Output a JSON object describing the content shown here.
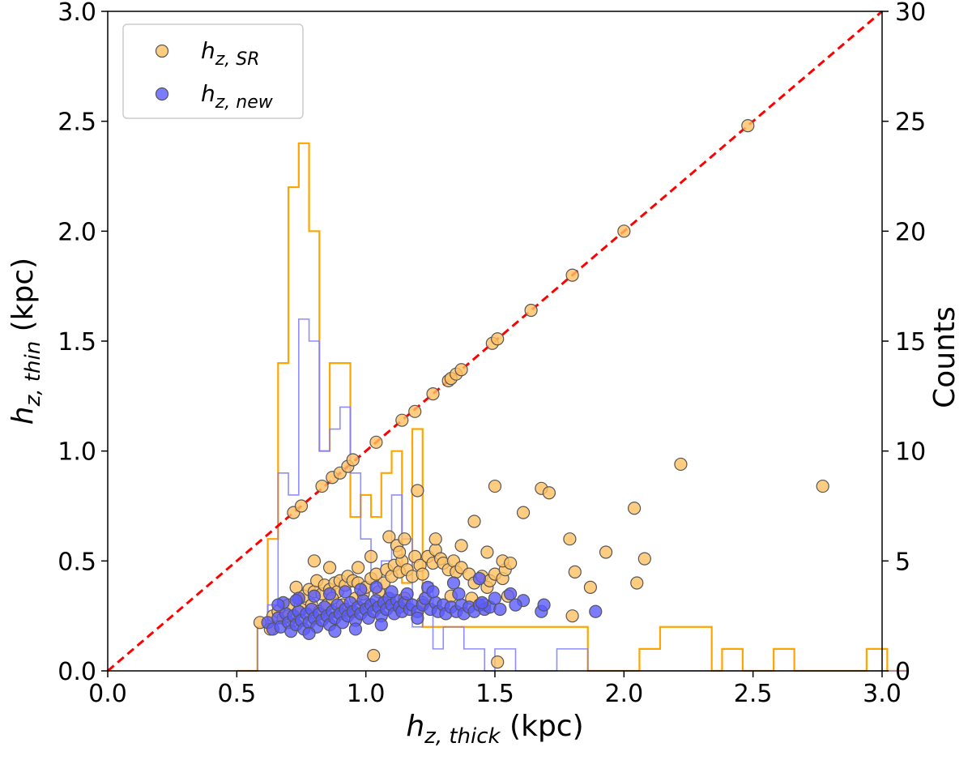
{
  "chart_data": {
    "type": "scatter",
    "title": "",
    "xlabel": {
      "base": "h",
      "sub": "z, thick",
      "unit": " (kpc)"
    },
    "ylabel": {
      "base": "h",
      "sub": "z, thin",
      "unit": " (kpc)"
    },
    "y2label": "Counts",
    "xlim": [
      0,
      3
    ],
    "ylim": [
      0,
      3
    ],
    "y2lim": [
      0,
      30
    ],
    "xticks": [
      "0.0",
      "0.5",
      "1.0",
      "1.5",
      "2.0",
      "2.5",
      "3.0"
    ],
    "yticks": [
      "0.0",
      "0.5",
      "1.0",
      "1.5",
      "2.0",
      "2.5",
      "3.0"
    ],
    "y2ticks": [
      "0",
      "5",
      "10",
      "15",
      "20",
      "25",
      "30"
    ],
    "grid": false,
    "legend_position": "top-left",
    "colors": {
      "sr_fill": "#ffc163",
      "new_fill": "#5b5bff",
      "marker_edge": "#555555",
      "sr_hist": "#ffa500",
      "new_hist": "#7a7aff",
      "diagonal": "#ff0000"
    },
    "reference_line": {
      "name": "one-to-one",
      "x": [
        0,
        3
      ],
      "y": [
        0,
        3
      ],
      "style": "dashed"
    },
    "series": [
      {
        "name": "h_z,SR",
        "legend_base": "h",
        "legend_sub": "z, SR",
        "points": [
          [
            0.59,
            0.22
          ],
          [
            0.63,
            0.19
          ],
          [
            0.64,
            0.25
          ],
          [
            0.66,
            0.27
          ],
          [
            0.68,
            0.24
          ],
          [
            0.7,
            0.3
          ],
          [
            0.72,
            0.23
          ],
          [
            0.73,
            0.38
          ],
          [
            0.74,
            0.33
          ],
          [
            0.76,
            0.34
          ],
          [
            0.78,
            0.37
          ],
          [
            0.8,
            0.36
          ],
          [
            0.81,
            0.41
          ],
          [
            0.83,
            0.35
          ],
          [
            0.84,
            0.39
          ],
          [
            0.86,
            0.37
          ],
          [
            0.88,
            0.4
          ],
          [
            0.89,
            0.36
          ],
          [
            0.9,
            0.41
          ],
          [
            0.92,
            0.39
          ],
          [
            0.93,
            0.43
          ],
          [
            0.95,
            0.41
          ],
          [
            0.7,
            0.25
          ],
          [
            0.75,
            0.28
          ],
          [
            0.79,
            0.3
          ],
          [
            0.82,
            0.27
          ],
          [
            0.85,
            0.3
          ],
          [
            0.87,
            0.33
          ],
          [
            0.91,
            0.3
          ],
          [
            0.94,
            0.27
          ],
          [
            0.96,
            0.33
          ],
          [
            0.97,
            0.4
          ],
          [
            0.99,
            0.35
          ],
          [
            1.0,
            0.38
          ],
          [
            1.02,
            0.42
          ],
          [
            1.04,
            0.44
          ],
          [
            1.05,
            0.36
          ],
          [
            1.07,
            0.4
          ],
          [
            1.08,
            0.46
          ],
          [
            1.1,
            0.43
          ],
          [
            1.11,
            0.48
          ],
          [
            1.13,
            0.45
          ],
          [
            1.14,
            0.5
          ],
          [
            1.16,
            0.46
          ],
          [
            1.18,
            0.43
          ],
          [
            1.19,
            0.52
          ],
          [
            1.21,
            0.48
          ],
          [
            1.22,
            0.44
          ],
          [
            1.24,
            0.52
          ],
          [
            1.26,
            0.49
          ],
          [
            1.27,
            0.55
          ],
          [
            1.29,
            0.51
          ],
          [
            1.3,
            0.49
          ],
          [
            1.32,
            0.46
          ],
          [
            1.34,
            0.5
          ],
          [
            1.35,
            0.45
          ],
          [
            1.37,
            0.47
          ],
          [
            1.4,
            0.44
          ],
          [
            1.42,
            0.4
          ],
          [
            1.45,
            0.43
          ],
          [
            1.47,
            0.38
          ],
          [
            1.48,
            0.41
          ],
          [
            1.5,
            0.44
          ],
          [
            1.53,
            0.42
          ],
          [
            1.54,
            0.46
          ],
          [
            0.8,
            0.5
          ],
          [
            0.86,
            0.47
          ],
          [
            0.97,
            0.47
          ],
          [
            1.02,
            0.52
          ],
          [
            1.09,
            0.61
          ],
          [
            1.12,
            0.57
          ],
          [
            1.13,
            0.54
          ],
          [
            1.15,
            0.6
          ],
          [
            1.2,
            0.82
          ],
          [
            1.27,
            0.6
          ],
          [
            1.37,
            0.57
          ],
          [
            1.42,
            0.68
          ],
          [
            1.47,
            0.54
          ],
          [
            1.5,
            0.84
          ],
          [
            1.53,
            0.5
          ],
          [
            1.56,
            0.49
          ],
          [
            1.61,
            0.72
          ],
          [
            1.68,
            0.83
          ],
          [
            1.71,
            0.81
          ],
          [
            1.79,
            0.6
          ],
          [
            1.81,
            0.45
          ],
          [
            1.87,
            0.38
          ],
          [
            1.93,
            0.54
          ],
          [
            2.04,
            0.74
          ],
          [
            2.05,
            0.4
          ],
          [
            2.08,
            0.51
          ],
          [
            2.22,
            0.94
          ],
          [
            2.77,
            0.84
          ],
          [
            1.8,
            0.25
          ],
          [
            1.03,
            0.07
          ],
          [
            1.51,
            0.04
          ],
          [
            1.15,
            0.33
          ],
          [
            1.22,
            0.31
          ],
          [
            1.33,
            0.34
          ],
          [
            1.41,
            0.33
          ],
          [
            1.46,
            0.3
          ],
          [
            1.55,
            0.34
          ],
          [
            0.72,
            0.72
          ],
          [
            0.75,
            0.75
          ],
          [
            0.83,
            0.84
          ],
          [
            0.87,
            0.88
          ],
          [
            0.9,
            0.9
          ],
          [
            0.93,
            0.93
          ],
          [
            0.95,
            0.96
          ],
          [
            1.04,
            1.04
          ],
          [
            1.14,
            1.14
          ],
          [
            1.19,
            1.18
          ],
          [
            1.26,
            1.26
          ],
          [
            1.32,
            1.32
          ],
          [
            1.33,
            1.33
          ],
          [
            1.35,
            1.35
          ],
          [
            1.37,
            1.37
          ],
          [
            1.49,
            1.49
          ],
          [
            1.51,
            1.51
          ],
          [
            1.64,
            1.64
          ],
          [
            1.8,
            1.8
          ],
          [
            2.0,
            2.0
          ],
          [
            2.48,
            2.48
          ]
        ]
      },
      {
        "name": "h_z,new",
        "legend_base": "h",
        "legend_sub": "z, new",
        "points": [
          [
            0.62,
            0.22
          ],
          [
            0.64,
            0.19
          ],
          [
            0.66,
            0.24
          ],
          [
            0.67,
            0.2
          ],
          [
            0.69,
            0.26
          ],
          [
            0.7,
            0.22
          ],
          [
            0.71,
            0.18
          ],
          [
            0.72,
            0.25
          ],
          [
            0.73,
            0.21
          ],
          [
            0.74,
            0.27
          ],
          [
            0.75,
            0.23
          ],
          [
            0.76,
            0.19
          ],
          [
            0.77,
            0.26
          ],
          [
            0.78,
            0.22
          ],
          [
            0.79,
            0.28
          ],
          [
            0.8,
            0.24
          ],
          [
            0.81,
            0.2
          ],
          [
            0.82,
            0.26
          ],
          [
            0.83,
            0.23
          ],
          [
            0.84,
            0.29
          ],
          [
            0.85,
            0.25
          ],
          [
            0.86,
            0.21
          ],
          [
            0.87,
            0.27
          ],
          [
            0.88,
            0.24
          ],
          [
            0.89,
            0.3
          ],
          [
            0.9,
            0.26
          ],
          [
            0.91,
            0.22
          ],
          [
            0.92,
            0.28
          ],
          [
            0.93,
            0.25
          ],
          [
            0.94,
            0.31
          ],
          [
            0.95,
            0.27
          ],
          [
            0.96,
            0.23
          ],
          [
            0.97,
            0.29
          ],
          [
            0.98,
            0.26
          ],
          [
            0.99,
            0.32
          ],
          [
            1.0,
            0.28
          ],
          [
            1.01,
            0.24
          ],
          [
            1.02,
            0.3
          ],
          [
            1.03,
            0.27
          ],
          [
            1.04,
            0.32
          ],
          [
            1.05,
            0.29
          ],
          [
            1.06,
            0.25
          ],
          [
            1.07,
            0.31
          ],
          [
            1.08,
            0.28
          ],
          [
            1.09,
            0.33
          ],
          [
            1.1,
            0.3
          ],
          [
            1.11,
            0.26
          ],
          [
            1.12,
            0.32
          ],
          [
            1.13,
            0.29
          ],
          [
            1.14,
            0.27
          ],
          [
            1.15,
            0.31
          ],
          [
            1.17,
            0.28
          ],
          [
            1.18,
            0.3
          ],
          [
            1.2,
            0.27
          ],
          [
            1.22,
            0.3
          ],
          [
            1.23,
            0.33
          ],
          [
            1.25,
            0.28
          ],
          [
            1.27,
            0.31
          ],
          [
            1.28,
            0.27
          ],
          [
            1.3,
            0.3
          ],
          [
            1.31,
            0.26
          ],
          [
            1.33,
            0.29
          ],
          [
            1.35,
            0.27
          ],
          [
            1.37,
            0.3
          ],
          [
            1.38,
            0.26
          ],
          [
            1.4,
            0.29
          ],
          [
            1.42,
            0.27
          ],
          [
            1.44,
            0.3
          ],
          [
            1.46,
            0.28
          ],
          [
            1.48,
            0.29
          ],
          [
            0.68,
            0.31
          ],
          [
            0.74,
            0.33
          ],
          [
            0.8,
            0.34
          ],
          [
            0.86,
            0.35
          ],
          [
            0.92,
            0.36
          ],
          [
            0.98,
            0.37
          ],
          [
            1.04,
            0.38
          ],
          [
            1.1,
            0.36
          ],
          [
            1.16,
            0.35
          ],
          [
            1.24,
            0.38
          ],
          [
            1.34,
            0.4
          ],
          [
            1.44,
            0.42
          ],
          [
            1.5,
            0.33
          ],
          [
            1.56,
            0.35
          ],
          [
            1.61,
            0.32
          ],
          [
            1.68,
            0.27
          ],
          [
            1.69,
            0.3
          ],
          [
            1.89,
            0.27
          ],
          [
            0.78,
            0.17
          ],
          [
            0.88,
            0.18
          ],
          [
            0.96,
            0.19
          ],
          [
            1.06,
            0.21
          ],
          [
            1.2,
            0.24
          ],
          [
            0.66,
            0.3
          ],
          [
            0.73,
            0.32
          ],
          [
            1.26,
            0.36
          ],
          [
            1.36,
            0.35
          ],
          [
            1.45,
            0.31
          ],
          [
            1.52,
            0.28
          ],
          [
            1.58,
            0.3
          ]
        ]
      }
    ],
    "histograms": [
      {
        "name": "h_z,SR counts",
        "bin_start": 0.5,
        "bin_width": 0.04,
        "counts": [
          0,
          0,
          2,
          6,
          14,
          22,
          24,
          20,
          10,
          14,
          14,
          7,
          8,
          7,
          9,
          10,
          4,
          11,
          2,
          2,
          2,
          2,
          2,
          2,
          2,
          2,
          2,
          2,
          2,
          2,
          2,
          2,
          2,
          2,
          0,
          0,
          0,
          0,
          0,
          1,
          1,
          2,
          2,
          2,
          2,
          2,
          0,
          1,
          1,
          0,
          0,
          0,
          1,
          1,
          0,
          0,
          0,
          0,
          0,
          0,
          0,
          1,
          1,
          0,
          0
        ]
      },
      {
        "name": "h_z,new counts",
        "bin_start": 0.5,
        "bin_width": 0.04,
        "counts": [
          0,
          0,
          2,
          3,
          9,
          8,
          16,
          15,
          10,
          11,
          12,
          9,
          6,
          4,
          5,
          8,
          6,
          2,
          4,
          1,
          2,
          2,
          1,
          1,
          0,
          1,
          1,
          0,
          0,
          0,
          0,
          1,
          1,
          1,
          0,
          0,
          0,
          0,
          0,
          0,
          0,
          0,
          0,
          0,
          0,
          0,
          0,
          0,
          0,
          0,
          0,
          0,
          0,
          0,
          0,
          0,
          0,
          0,
          0,
          0,
          0,
          0,
          0,
          0,
          0
        ]
      }
    ]
  }
}
